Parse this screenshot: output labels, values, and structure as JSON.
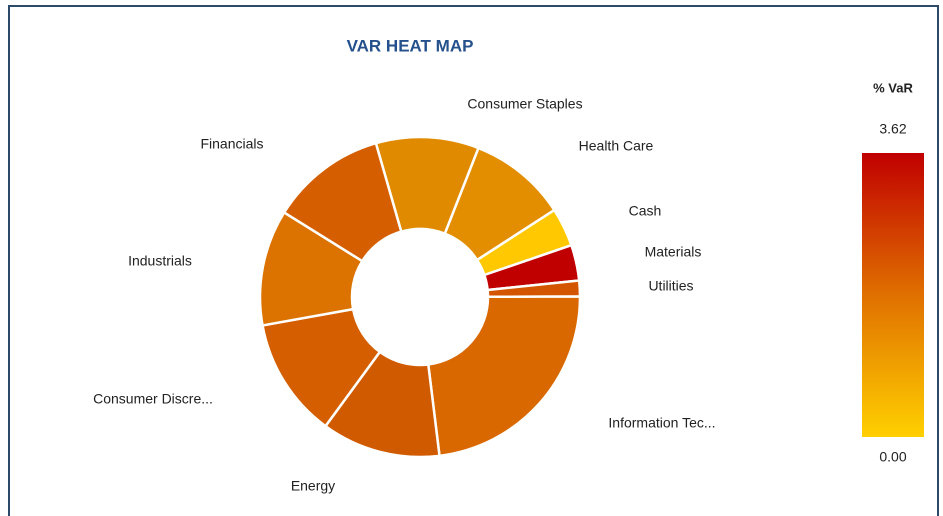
{
  "chart_data": {
    "type": "donut",
    "title": "VAR HEAT MAP",
    "categories": [
      "Consumer Staples",
      "Health Care",
      "Cash",
      "Materials",
      "Utilities",
      "Information Tec...",
      "Energy",
      "Consumer Discre...",
      "Industrials",
      "Financials"
    ],
    "values": [
      10.4,
      9.9,
      3.9,
      3.6,
      1.6,
      23.1,
      12.0,
      12.1,
      11.7,
      11.7
    ],
    "colors": [
      "#e08a00",
      "#e38d00",
      "#ffc800",
      "#c00000",
      "#d45500",
      "#da6800",
      "#d05a00",
      "#d45e00",
      "#dc7200",
      "#d55f00"
    ],
    "colorbar": {
      "title": "% VaR",
      "max": 3.62,
      "min": {
        "value": 0,
        "label": "0.00"
      },
      "colors": [
        "#c00000",
        "#e07000",
        "#ffd000"
      ]
    }
  }
}
